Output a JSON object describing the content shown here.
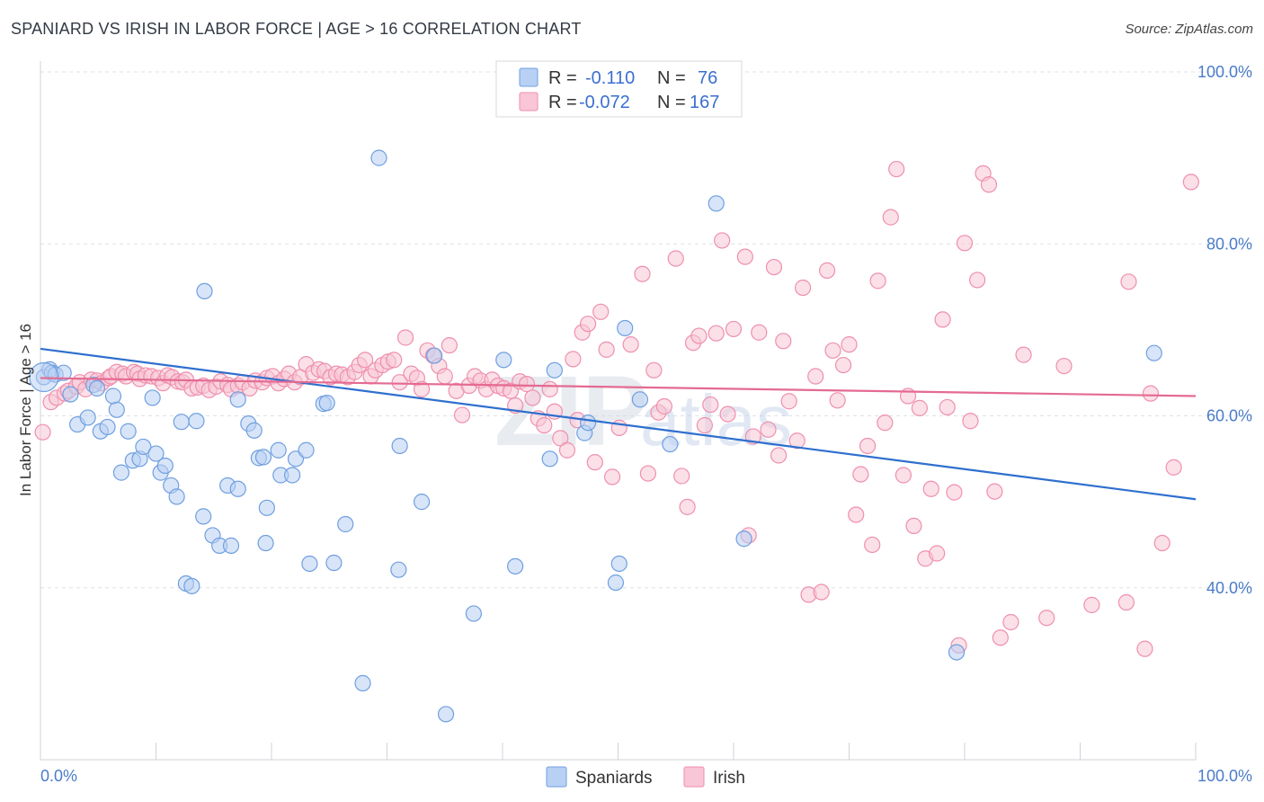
{
  "title": "SPANIARD VS IRISH IN LABOR FORCE | AGE > 16 CORRELATION CHART",
  "source": "Source: ZipAtlas.com",
  "watermark": {
    "zip": "ZIP",
    "atlas": "atlas"
  },
  "colors": {
    "spaniards_fill": "#b8d0f3",
    "spaniards_stroke": "#6f9fe0",
    "spaniards_line": "#2e6fce",
    "irish_fill": "#f8c6d6",
    "irish_stroke": "#ef8fae",
    "irish_line": "#e46a92",
    "axis_label": "#4a7cc9"
  },
  "legend": {
    "rows": [
      {
        "r_label": "R =",
        "r_value": "-0.110",
        "n_label": "N =",
        "n_value": "76"
      },
      {
        "r_label": "R =",
        "r_value": "-0.072",
        "n_label": "N =",
        "n_value": "167"
      }
    ]
  },
  "chart_data": {
    "type": "scatter",
    "title": "SPANIARD VS IRISH IN LABOR FORCE | AGE > 16 CORRELATION CHART",
    "xlabel": "",
    "ylabel": "In Labor Force | Age > 16",
    "xlim": [
      0,
      100
    ],
    "ylim": [
      20,
      100
    ],
    "x_tick_labels": [
      "0.0%",
      "100.0%"
    ],
    "y_ticks": [
      40,
      60,
      80,
      100
    ],
    "y_tick_labels": [
      "40.0%",
      "60.0%",
      "80.0%",
      "100.0%"
    ],
    "grid": true,
    "legend_position": "top-center",
    "series": [
      {
        "name": "Spaniards",
        "trend": [
          [
            0,
            67.8
          ],
          [
            100,
            50.3
          ]
        ],
        "points": [
          [
            0.3,
            64.5
          ],
          [
            0.8,
            65.4
          ],
          [
            1.0,
            65.0
          ],
          [
            1.3,
            64.8
          ],
          [
            2.0,
            65.0
          ],
          [
            2.6,
            62.5
          ],
          [
            3.2,
            59.0
          ],
          [
            4.1,
            59.8
          ],
          [
            4.6,
            63.6
          ],
          [
            4.9,
            63.2
          ],
          [
            5.2,
            58.2
          ],
          [
            5.8,
            58.7
          ],
          [
            6.3,
            62.3
          ],
          [
            6.6,
            60.7
          ],
          [
            7.0,
            53.4
          ],
          [
            7.6,
            58.2
          ],
          [
            8.0,
            54.8
          ],
          [
            8.6,
            55.0
          ],
          [
            8.9,
            56.4
          ],
          [
            9.7,
            62.1
          ],
          [
            10.0,
            55.6
          ],
          [
            10.4,
            53.4
          ],
          [
            10.8,
            54.2
          ],
          [
            11.3,
            51.9
          ],
          [
            11.8,
            50.6
          ],
          [
            12.2,
            59.3
          ],
          [
            12.6,
            40.5
          ],
          [
            13.1,
            40.2
          ],
          [
            13.5,
            59.4
          ],
          [
            14.1,
            48.3
          ],
          [
            14.2,
            74.5
          ],
          [
            14.9,
            46.1
          ],
          [
            15.5,
            44.9
          ],
          [
            16.5,
            44.9
          ],
          [
            16.2,
            51.9
          ],
          [
            17.1,
            51.5
          ],
          [
            17.1,
            61.9
          ],
          [
            18.0,
            59.1
          ],
          [
            18.5,
            58.3
          ],
          [
            18.9,
            55.1
          ],
          [
            19.3,
            55.2
          ],
          [
            19.6,
            49.3
          ],
          [
            19.5,
            45.2
          ],
          [
            20.6,
            56.0
          ],
          [
            20.8,
            53.1
          ],
          [
            21.8,
            53.1
          ],
          [
            22.1,
            55.0
          ],
          [
            23.0,
            56.0
          ],
          [
            23.3,
            42.8
          ],
          [
            24.5,
            61.4
          ],
          [
            24.8,
            61.5
          ],
          [
            25.4,
            42.9
          ],
          [
            26.4,
            47.4
          ],
          [
            27.9,
            28.9
          ],
          [
            29.3,
            90.0
          ],
          [
            31.0,
            42.1
          ],
          [
            31.1,
            56.5
          ],
          [
            33.0,
            50.0
          ],
          [
            34.1,
            67.0
          ],
          [
            35.1,
            25.3
          ],
          [
            37.5,
            37.0
          ],
          [
            40.1,
            66.5
          ],
          [
            41.1,
            42.5
          ],
          [
            44.1,
            55.0
          ],
          [
            44.5,
            65.3
          ],
          [
            47.1,
            58.0
          ],
          [
            47.4,
            59.2
          ],
          [
            49.8,
            40.6
          ],
          [
            50.1,
            42.8
          ],
          [
            50.6,
            70.2
          ],
          [
            51.9,
            61.9
          ],
          [
            54.5,
            56.7
          ],
          [
            58.5,
            84.7
          ],
          [
            60.9,
            45.7
          ],
          [
            79.3,
            32.5
          ],
          [
            96.4,
            67.3
          ]
        ]
      },
      {
        "name": "Irish",
        "trend": [
          [
            0,
            64.4
          ],
          [
            100,
            62.3
          ]
        ],
        "points": [
          [
            0.2,
            58.1
          ],
          [
            0.9,
            61.6
          ],
          [
            1.4,
            62.1
          ],
          [
            2.1,
            62.6
          ],
          [
            2.4,
            62.9
          ],
          [
            3.1,
            63.4
          ],
          [
            3.4,
            63.9
          ],
          [
            3.9,
            63.1
          ],
          [
            4.4,
            64.2
          ],
          [
            4.9,
            64.1
          ],
          [
            5.3,
            63.8
          ],
          [
            5.9,
            64.4
          ],
          [
            6.1,
            64.6
          ],
          [
            6.6,
            65.1
          ],
          [
            7.1,
            64.9
          ],
          [
            7.4,
            64.6
          ],
          [
            8.1,
            65.1
          ],
          [
            8.4,
            64.9
          ],
          [
            8.6,
            64.3
          ],
          [
            9.1,
            64.7
          ],
          [
            9.6,
            64.6
          ],
          [
            10.2,
            64.4
          ],
          [
            10.6,
            63.8
          ],
          [
            11.0,
            64.7
          ],
          [
            11.4,
            64.5
          ],
          [
            11.9,
            64.0
          ],
          [
            12.3,
            63.9
          ],
          [
            12.6,
            64.2
          ],
          [
            13.1,
            63.2
          ],
          [
            13.6,
            63.3
          ],
          [
            14.1,
            63.5
          ],
          [
            14.6,
            63.0
          ],
          [
            15.2,
            63.4
          ],
          [
            15.6,
            64.0
          ],
          [
            16.2,
            63.6
          ],
          [
            16.5,
            63.1
          ],
          [
            17.1,
            63.5
          ],
          [
            17.5,
            63.9
          ],
          [
            18.1,
            63.2
          ],
          [
            18.6,
            64.1
          ],
          [
            19.2,
            63.9
          ],
          [
            19.6,
            64.4
          ],
          [
            20.1,
            64.6
          ],
          [
            20.6,
            63.8
          ],
          [
            21.1,
            64.3
          ],
          [
            21.5,
            64.9
          ],
          [
            22.0,
            63.9
          ],
          [
            22.5,
            64.5
          ],
          [
            23.0,
            66.0
          ],
          [
            23.6,
            65.0
          ],
          [
            24.1,
            65.4
          ],
          [
            24.6,
            65.2
          ],
          [
            25.1,
            64.5
          ],
          [
            25.6,
            64.9
          ],
          [
            26.1,
            64.8
          ],
          [
            26.6,
            64.5
          ],
          [
            27.2,
            65.1
          ],
          [
            27.6,
            65.9
          ],
          [
            28.1,
            66.5
          ],
          [
            28.6,
            64.6
          ],
          [
            29.0,
            65.3
          ],
          [
            29.6,
            65.9
          ],
          [
            30.1,
            66.3
          ],
          [
            30.6,
            66.5
          ],
          [
            31.1,
            63.9
          ],
          [
            31.6,
            69.1
          ],
          [
            32.1,
            64.9
          ],
          [
            32.6,
            64.4
          ],
          [
            33.0,
            63.1
          ],
          [
            33.5,
            67.6
          ],
          [
            34.0,
            67.0
          ],
          [
            34.5,
            65.8
          ],
          [
            35.0,
            64.6
          ],
          [
            35.4,
            68.2
          ],
          [
            36.0,
            62.9
          ],
          [
            36.5,
            60.1
          ],
          [
            37.1,
            63.5
          ],
          [
            37.6,
            64.6
          ],
          [
            38.1,
            64.1
          ],
          [
            38.6,
            63.1
          ],
          [
            39.1,
            64.2
          ],
          [
            39.6,
            63.5
          ],
          [
            40.1,
            63.2
          ],
          [
            40.7,
            62.9
          ],
          [
            41.1,
            61.2
          ],
          [
            41.5,
            64.0
          ],
          [
            42.1,
            63.7
          ],
          [
            42.6,
            62.1
          ],
          [
            43.1,
            59.7
          ],
          [
            43.6,
            58.9
          ],
          [
            44.1,
            63.1
          ],
          [
            44.5,
            60.5
          ],
          [
            45.0,
            57.4
          ],
          [
            45.6,
            56.0
          ],
          [
            46.1,
            66.6
          ],
          [
            46.5,
            59.5
          ],
          [
            46.9,
            69.7
          ],
          [
            47.4,
            70.7
          ],
          [
            48.0,
            54.6
          ],
          [
            48.5,
            72.1
          ],
          [
            49.0,
            67.7
          ],
          [
            49.5,
            52.9
          ],
          [
            50.1,
            58.6
          ],
          [
            51.1,
            68.3
          ],
          [
            52.1,
            76.5
          ],
          [
            52.6,
            53.3
          ],
          [
            53.1,
            65.3
          ],
          [
            53.5,
            60.4
          ],
          [
            54.0,
            61.1
          ],
          [
            55.0,
            78.3
          ],
          [
            55.5,
            53.0
          ],
          [
            56.0,
            49.4
          ],
          [
            56.5,
            68.5
          ],
          [
            57.0,
            69.3
          ],
          [
            57.5,
            58.9
          ],
          [
            58.0,
            61.3
          ],
          [
            58.5,
            69.6
          ],
          [
            59.0,
            80.4
          ],
          [
            59.5,
            60.2
          ],
          [
            60.0,
            70.1
          ],
          [
            61.0,
            78.5
          ],
          [
            61.3,
            46.1
          ],
          [
            61.7,
            57.6
          ],
          [
            62.2,
            69.7
          ],
          [
            63.0,
            58.4
          ],
          [
            63.5,
            77.3
          ],
          [
            63.9,
            55.4
          ],
          [
            64.3,
            68.7
          ],
          [
            64.8,
            61.7
          ],
          [
            65.5,
            57.1
          ],
          [
            66.0,
            74.9
          ],
          [
            66.5,
            39.2
          ],
          [
            67.1,
            64.6
          ],
          [
            67.6,
            39.5
          ],
          [
            68.1,
            76.9
          ],
          [
            68.6,
            67.6
          ],
          [
            69.0,
            61.8
          ],
          [
            69.5,
            65.9
          ],
          [
            70.0,
            68.3
          ],
          [
            70.6,
            48.5
          ],
          [
            71.0,
            53.2
          ],
          [
            71.6,
            56.5
          ],
          [
            72.0,
            45.0
          ],
          [
            72.5,
            75.7
          ],
          [
            73.1,
            59.2
          ],
          [
            73.6,
            83.1
          ],
          [
            74.1,
            88.7
          ],
          [
            74.7,
            53.1
          ],
          [
            75.1,
            62.3
          ],
          [
            75.6,
            47.2
          ],
          [
            76.1,
            60.9
          ],
          [
            76.6,
            43.4
          ],
          [
            77.1,
            51.5
          ],
          [
            77.6,
            44.0
          ],
          [
            78.1,
            71.2
          ],
          [
            78.5,
            61.0
          ],
          [
            79.1,
            51.1
          ],
          [
            79.5,
            33.3
          ],
          [
            80.0,
            80.1
          ],
          [
            80.5,
            59.4
          ],
          [
            81.1,
            75.8
          ],
          [
            81.6,
            88.2
          ],
          [
            82.1,
            86.9
          ],
          [
            82.6,
            51.2
          ],
          [
            83.1,
            34.2
          ],
          [
            84.0,
            36.0
          ],
          [
            85.1,
            67.1
          ],
          [
            87.1,
            36.5
          ],
          [
            88.6,
            65.8
          ],
          [
            91.0,
            38.0
          ],
          [
            94.0,
            38.3
          ],
          [
            94.2,
            75.6
          ],
          [
            95.6,
            32.9
          ],
          [
            96.1,
            62.6
          ],
          [
            97.1,
            45.2
          ],
          [
            98.1,
            54.0
          ],
          [
            99.6,
            87.2
          ]
        ]
      }
    ]
  },
  "bottom_legend": [
    {
      "label": "Spaniards"
    },
    {
      "label": "Irish"
    }
  ]
}
